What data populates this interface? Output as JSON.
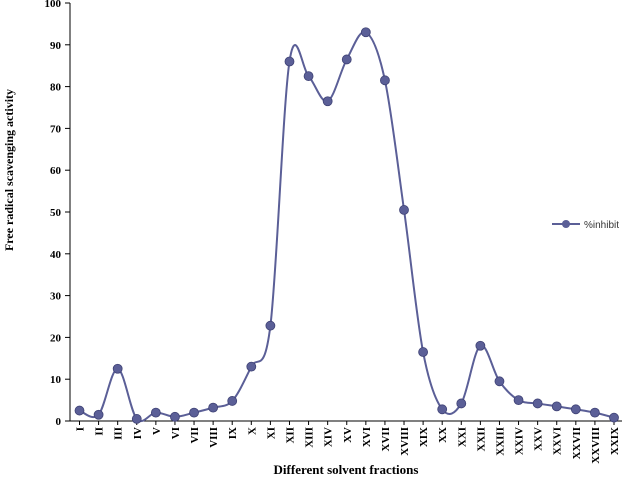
{
  "chart_data": {
    "type": "line",
    "xlabel": "Different solvent fractions",
    "ylabel": "Free radical scavenging activity",
    "ylim": [
      0,
      100
    ],
    "yticks": [
      0,
      10,
      20,
      30,
      40,
      50,
      60,
      70,
      80,
      90,
      100
    ],
    "categories": [
      "I",
      "II",
      "III",
      "IV",
      "V",
      "VI",
      "VII",
      "VIII",
      "IX",
      "X",
      "XI",
      "XII",
      "XIII",
      "XIV",
      "XV",
      "XVI",
      "XVII",
      "XVIII",
      "XIX",
      "XX",
      "XXI",
      "XXII",
      "XXIII",
      "XXIV",
      "XXV",
      "XXVI",
      "XXVII",
      "XXVIII",
      "XXIX"
    ],
    "series": [
      {
        "name": "%inhibit",
        "color": "#5b5f97",
        "values": [
          2.5,
          1.5,
          12.5,
          0.5,
          2,
          1,
          2,
          3.2,
          4.8,
          13,
          22.8,
          86,
          82.5,
          76.5,
          86.5,
          93,
          81.5,
          50.5,
          16.5,
          2.8,
          4.2,
          18,
          9.5,
          5,
          4.2,
          3.5,
          2.8,
          2,
          0.8
        ]
      }
    ],
    "legend": "right",
    "grid": false
  }
}
